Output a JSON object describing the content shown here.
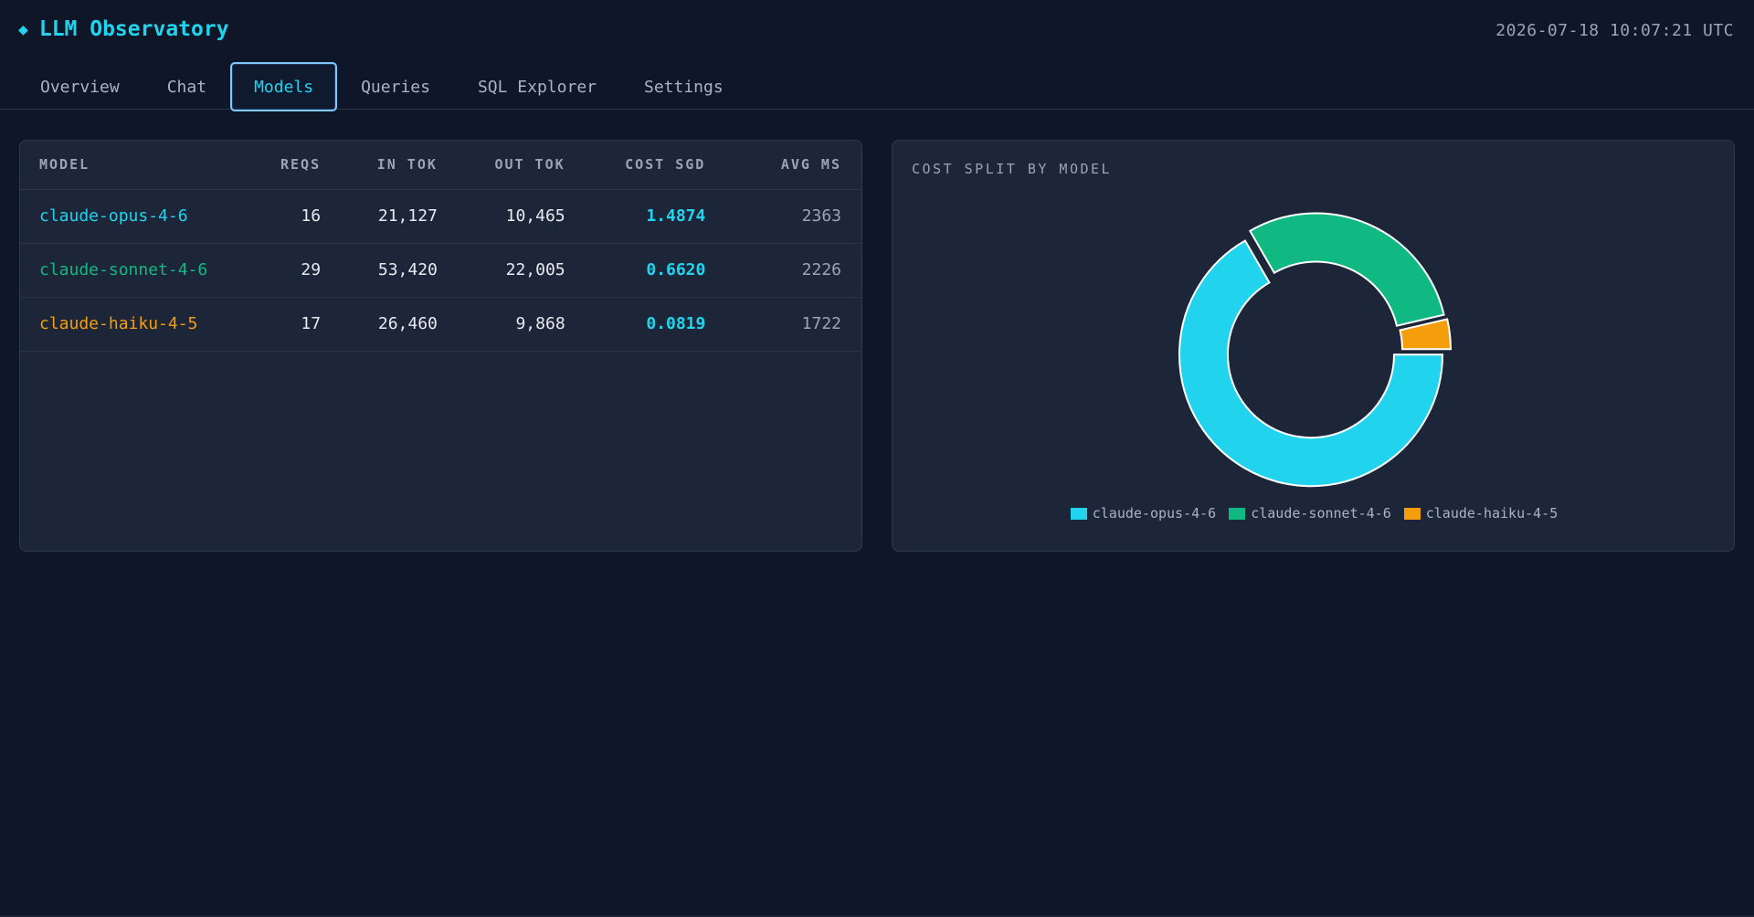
{
  "app": {
    "title": "LLM Observatory",
    "logo_icon": "diamond-icon",
    "clock": "2026-07-18 10:07:21 UTC"
  },
  "tabs": [
    {
      "label": "Overview",
      "active": false
    },
    {
      "label": "Chat",
      "active": false
    },
    {
      "label": "Models",
      "active": true
    },
    {
      "label": "Queries",
      "active": false
    },
    {
      "label": "SQL Explorer",
      "active": false
    },
    {
      "label": "Settings",
      "active": false
    }
  ],
  "table": {
    "headers": {
      "model": "MODEL",
      "reqs": "REQS",
      "in_tok": "IN TOK",
      "out_tok": "OUT TOK",
      "cost": "COST SGD",
      "avg_ms": "AVG MS"
    },
    "rows": [
      {
        "model": "claude-opus-4-6",
        "color": "#22d3ee",
        "reqs": "16",
        "in_tok": "21,127",
        "out_tok": "10,465",
        "cost": "1.4874",
        "avg_ms": "2363"
      },
      {
        "model": "claude-sonnet-4-6",
        "color": "#10b981",
        "reqs": "29",
        "in_tok": "53,420",
        "out_tok": "22,005",
        "cost": "0.6620",
        "avg_ms": "2226"
      },
      {
        "model": "claude-haiku-4-5",
        "color": "#f59e0b",
        "reqs": "17",
        "in_tok": "26,460",
        "out_tok": "9,868",
        "cost": "0.0819",
        "avg_ms": "1722"
      }
    ]
  },
  "chart_data": {
    "type": "pie",
    "variant": "doughnut",
    "title": "COST SPLIT BY MODEL",
    "categories": [
      "claude-opus-4-6",
      "claude-sonnet-4-6",
      "claude-haiku-4-5"
    ],
    "values": [
      1.4874,
      0.662,
      0.0819
    ],
    "colors": [
      "#22d3ee",
      "#10b981",
      "#f59e0b"
    ],
    "legend": "bottom"
  }
}
